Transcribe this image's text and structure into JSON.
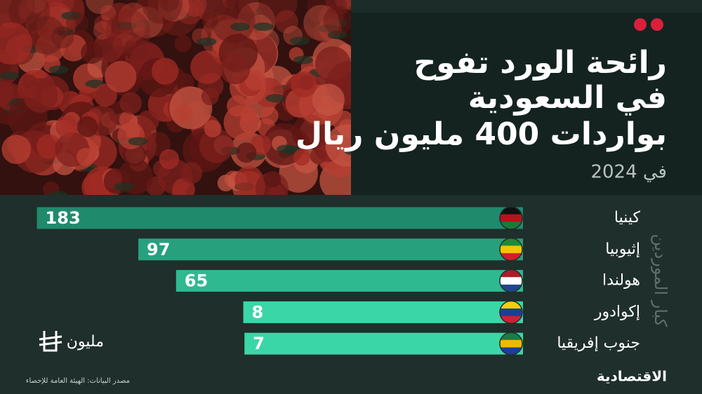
{
  "chart_data": {
    "type": "bar",
    "title_lines": [
      "رائحة الورد تفوح",
      "في السعودية",
      "بواردات 400 مليون ريال"
    ],
    "subtitle": "في 2024",
    "axis_label": "كبار الموردين",
    "unit": "مليون",
    "source": "مصدر البيانات: الهيئة العامة للإحصاء",
    "brand": "الاقتصادية",
    "categories": [
      "كينيا",
      "إثيوبيا",
      "هولندا",
      "إكوادور",
      "جنوب إفريقيا"
    ],
    "values": [
      183,
      97,
      65,
      8,
      7
    ],
    "colors": [
      "#1f8a6c",
      "#27a07e",
      "#2fb991",
      "#3bd6a8",
      "#3bd6a8"
    ]
  }
}
